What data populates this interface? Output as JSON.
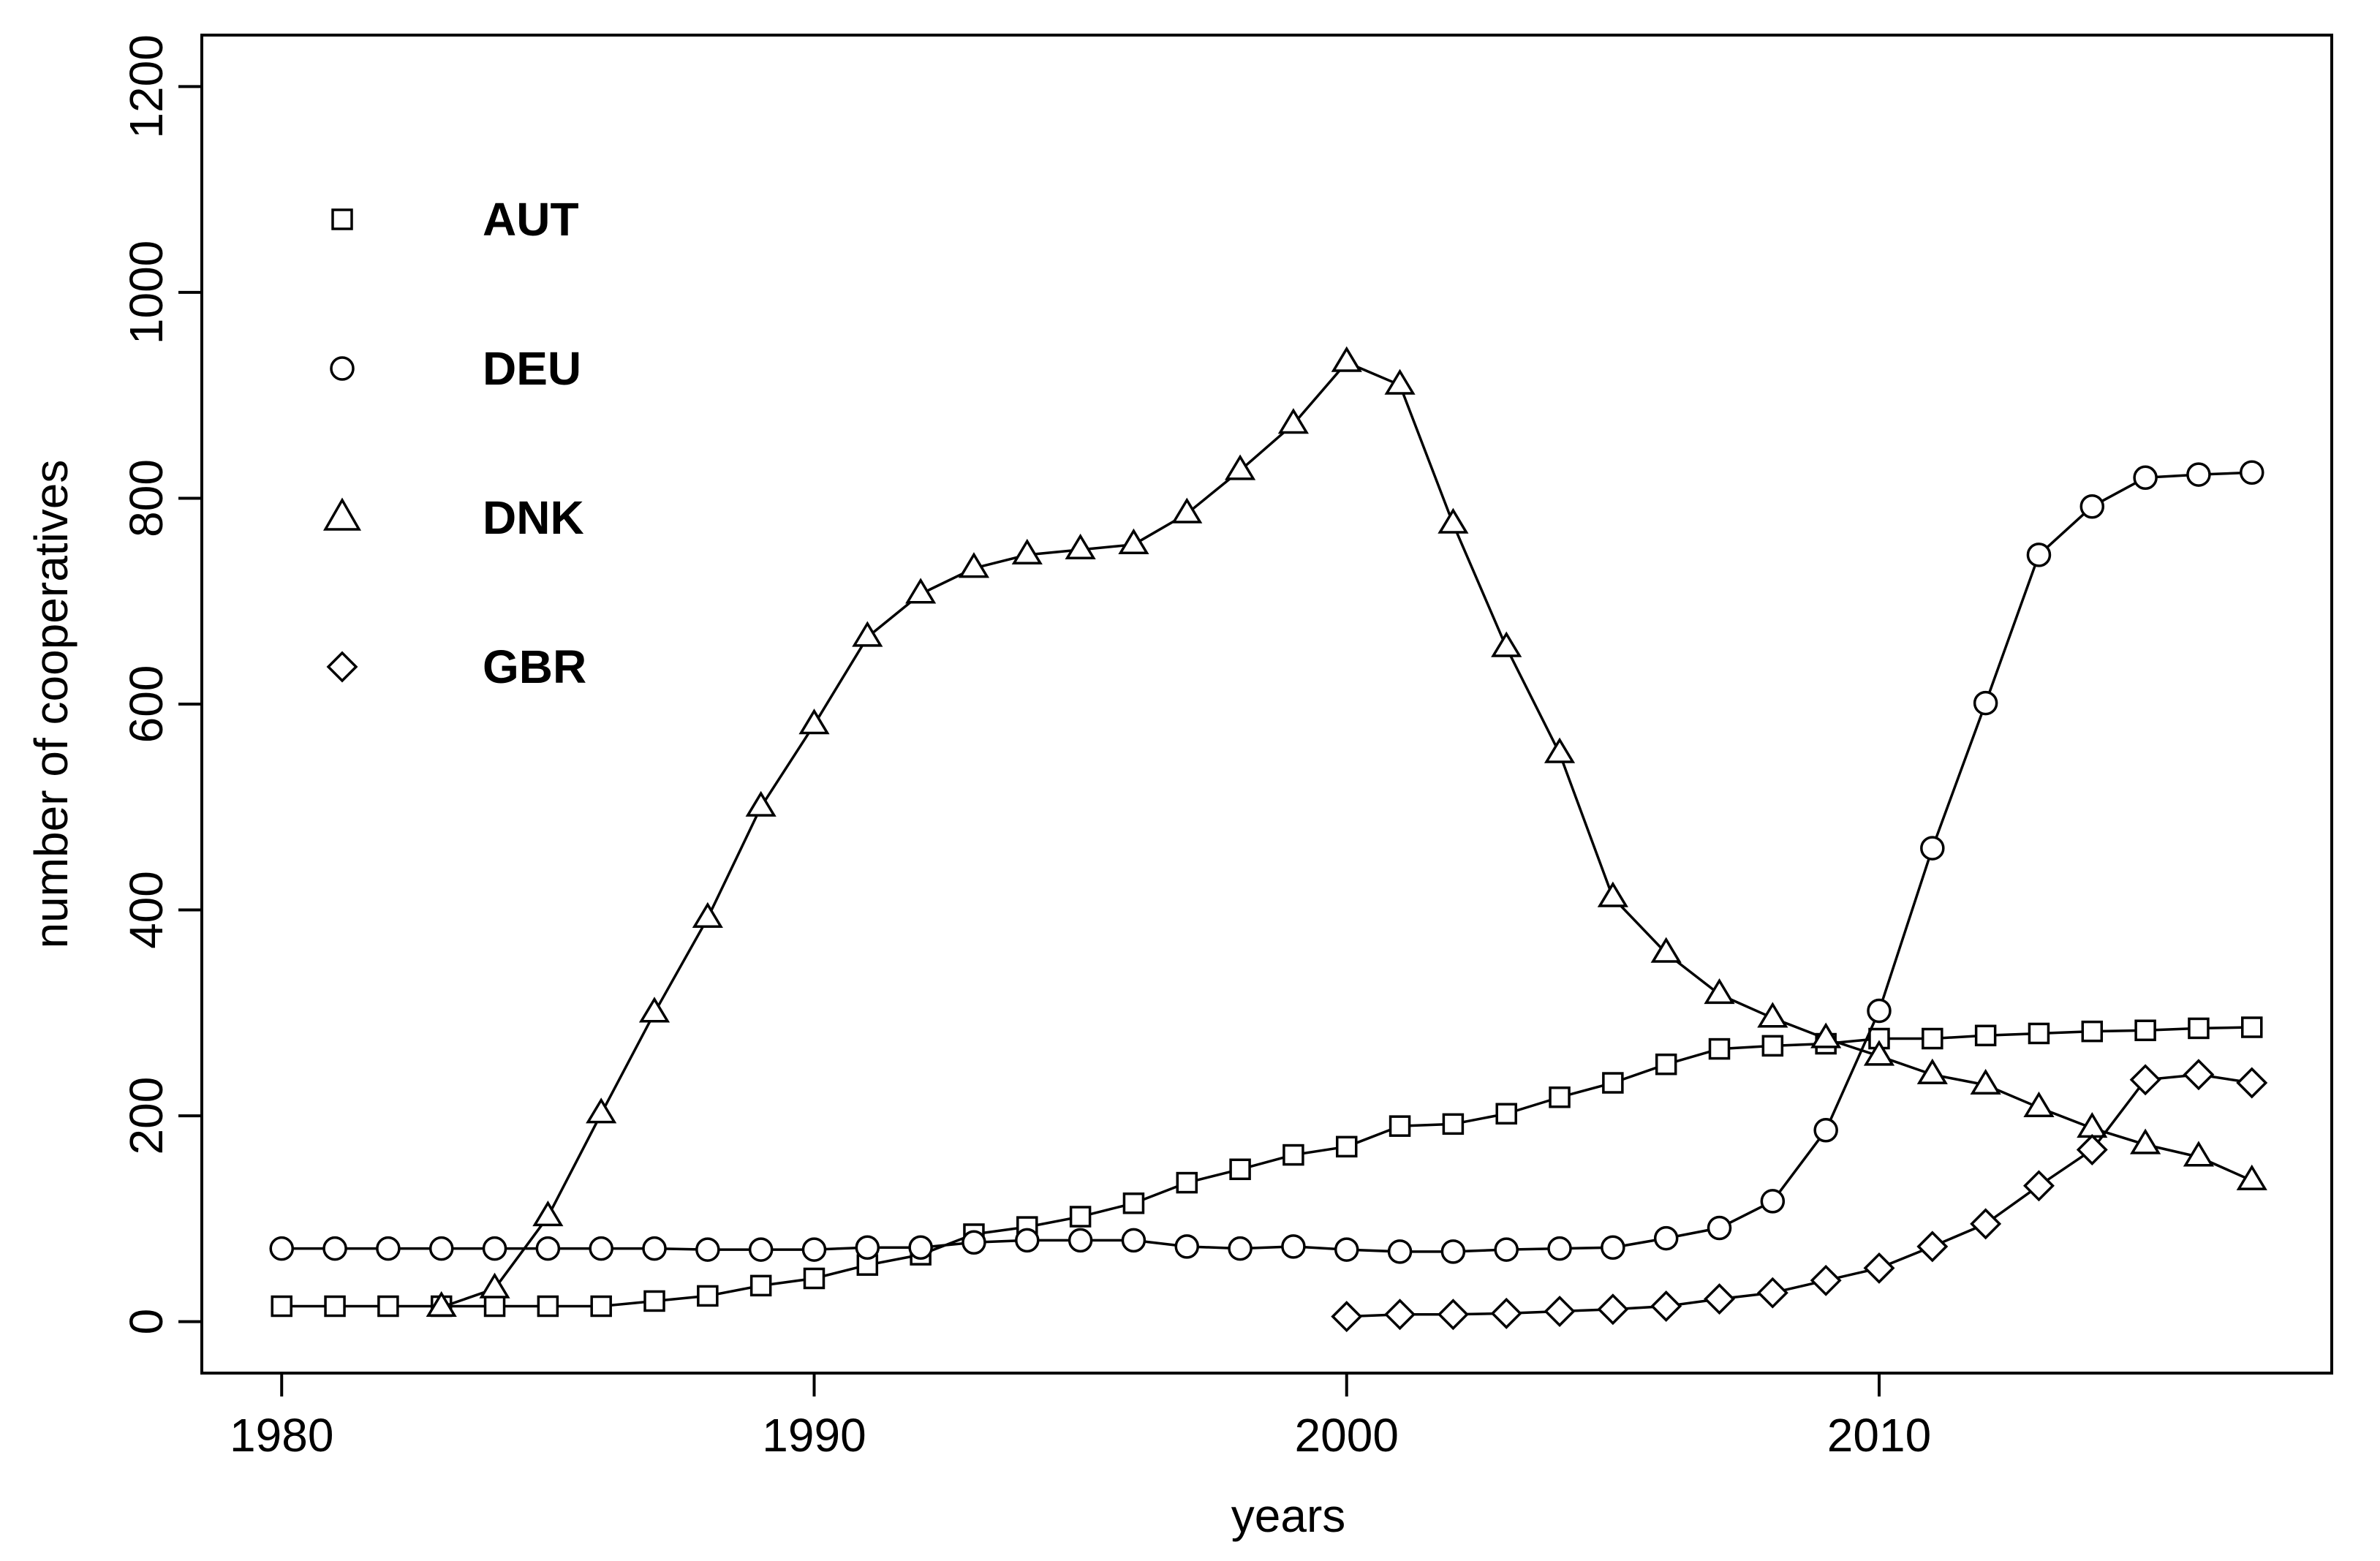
{
  "chart_data": {
    "type": "line",
    "title": "",
    "xlabel": "years",
    "ylabel": "number of cooperatives",
    "xlim": [
      1978.5,
      2018.5
    ],
    "ylim": [
      -50,
      1250
    ],
    "x_ticks": [
      1980,
      1990,
      2000,
      2010
    ],
    "y_ticks": [
      0,
      200,
      400,
      600,
      800,
      1000,
      1200
    ],
    "grid": false,
    "legend_position": "top-left",
    "series": [
      {
        "name": "AUT",
        "marker": "square",
        "x": [
          1980,
          1981,
          1982,
          1983,
          1984,
          1985,
          1986,
          1987,
          1988,
          1989,
          1990,
          1991,
          1992,
          1993,
          1994,
          1995,
          1996,
          1997,
          1998,
          1999,
          2000,
          2001,
          2002,
          2003,
          2004,
          2005,
          2006,
          2007,
          2008,
          2009,
          2010,
          2011,
          2012,
          2013,
          2014,
          2015,
          2016,
          2017
        ],
        "values": [
          15,
          15,
          15,
          15,
          15,
          15,
          15,
          20,
          25,
          35,
          42,
          55,
          65,
          85,
          92,
          102,
          115,
          135,
          148,
          162,
          170,
          190,
          192,
          202,
          218,
          232,
          250,
          265,
          268,
          270,
          275,
          275,
          278,
          280,
          282,
          283,
          285,
          286
        ]
      },
      {
        "name": "DEU",
        "marker": "circle",
        "x": [
          1980,
          1981,
          1982,
          1983,
          1984,
          1985,
          1986,
          1987,
          1988,
          1989,
          1990,
          1991,
          1992,
          1993,
          1994,
          1995,
          1996,
          1997,
          1998,
          1999,
          2000,
          2001,
          2002,
          2003,
          2004,
          2005,
          2006,
          2007,
          2008,
          2009,
          2010,
          2011,
          2012,
          2013,
          2014,
          2015,
          2016,
          2017
        ],
        "values": [
          71,
          71,
          71,
          71,
          71,
          71,
          71,
          71,
          70,
          70,
          70,
          72,
          72,
          77,
          79,
          79,
          79,
          73,
          71,
          73,
          70,
          68,
          68,
          70,
          71,
          72,
          81,
          91,
          117,
          186,
          302,
          460,
          601,
          745,
          792,
          820,
          823,
          825
        ]
      },
      {
        "name": "DNK",
        "marker": "triangle",
        "x": [
          1983,
          1984,
          1985,
          1986,
          1987,
          1988,
          1989,
          1990,
          1991,
          1992,
          1993,
          1994,
          1995,
          1996,
          1997,
          1998,
          1999,
          2000,
          2001,
          2002,
          2003,
          2004,
          2005,
          2006,
          2007,
          2008,
          2009,
          2010,
          2011,
          2012,
          2013,
          2014,
          2015,
          2016,
          2017
        ],
        "values": [
          14,
          32,
          102,
          202,
          300,
          392,
          500,
          580,
          665,
          707,
          732,
          745,
          750,
          755,
          785,
          827,
          872,
          932,
          910,
          775,
          655,
          552,
          412,
          358,
          318,
          295,
          275,
          258,
          240,
          230,
          208,
          188,
          172,
          160,
          137
        ]
      },
      {
        "name": "GBR",
        "marker": "diamond",
        "x": [
          2000,
          2001,
          2002,
          2003,
          2004,
          2005,
          2006,
          2007,
          2008,
          2009,
          2010,
          2011,
          2012,
          2013,
          2014,
          2015,
          2016,
          2017
        ],
        "values": [
          5,
          7,
          7,
          8,
          10,
          12,
          15,
          22,
          28,
          40,
          52,
          73,
          95,
          132,
          167,
          235,
          240,
          232
        ]
      }
    ]
  }
}
